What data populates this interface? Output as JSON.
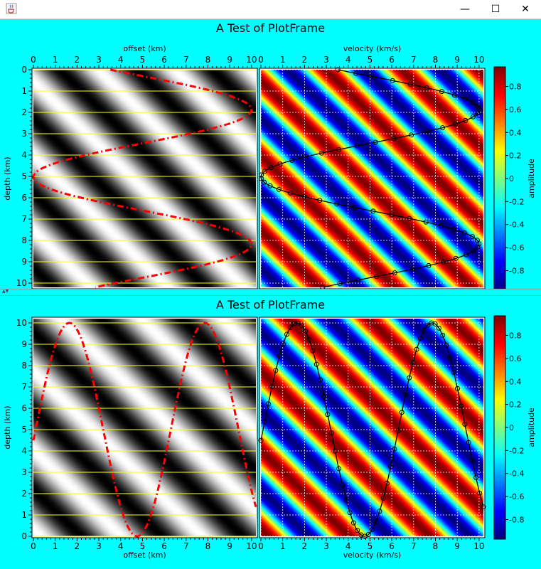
{
  "window": {
    "minimize_glyph": "—",
    "maximize_glyph": "☐",
    "close_glyph": "✕",
    "app_icon": "java-cup-icon"
  },
  "colors": {
    "background": "#00ffff",
    "title_bar": "#ffffff",
    "red_curve": "#ff0000",
    "black_curve": "#000000",
    "yellow_grid": "#ffff00"
  },
  "panels": [
    {
      "title": "A Test of PlotFrame",
      "axis_position": "top",
      "ylabel": "depth (km)",
      "y_direction": "down",
      "left_xlabel": "offset (km)",
      "right_xlabel": "velocity (km/s)",
      "colorbar_label": "amplitude",
      "y_ticks": [
        "0",
        "1",
        "2",
        "3",
        "4",
        "5",
        "6",
        "7",
        "8",
        "9",
        "10"
      ],
      "x_ticks": [
        "0",
        "1",
        "2",
        "3",
        "4",
        "5",
        "6",
        "7",
        "8",
        "9",
        "10"
      ],
      "colorbar_ticks": [
        "0.8",
        "0.6",
        "0.4",
        "0.2",
        "0",
        "-0.2",
        "-0.4",
        "-0.6",
        "-0.8"
      ]
    },
    {
      "title": "A Test of PlotFrame",
      "axis_position": "bottom",
      "ylabel": "depth (km)",
      "y_direction": "up",
      "left_xlabel": "offset (km)",
      "right_xlabel": "velocity (km/s)",
      "colorbar_label": "amplitude",
      "y_ticks": [
        "0",
        "1",
        "2",
        "3",
        "4",
        "5",
        "6",
        "7",
        "8",
        "9",
        "10"
      ],
      "x_ticks": [
        "0",
        "1",
        "2",
        "3",
        "4",
        "5",
        "6",
        "7",
        "8",
        "9",
        "10"
      ],
      "colorbar_ticks": [
        "0.8",
        "0.6",
        "0.4",
        "0.2",
        "0",
        "-0.2",
        "-0.4",
        "-0.6",
        "-0.8"
      ]
    }
  ],
  "chart_data": [
    {
      "type": "heatmap",
      "title": "A Test of PlotFrame",
      "xlabel": "offset (km)",
      "ylabel": "depth (km)",
      "colormap": "gray",
      "xlim": [
        0,
        10.2
      ],
      "ylim": [
        0,
        10.2
      ],
      "y_axis": "down",
      "field": "diagonal sine bands, period ~3.5 km",
      "y_gridlines": "yellow at each km",
      "series": [
        {
          "style": "dash-dot red",
          "shape": "x = 5 + 5*sin(2*pi*(y-0.3)/6.3)"
        }
      ]
    },
    {
      "type": "heatmap",
      "title": "A Test of PlotFrame",
      "xlabel": "velocity (km/s)",
      "ylabel": "depth (km)",
      "colormap": "jet",
      "xlim": [
        0,
        10.2
      ],
      "ylim": [
        0,
        10.2
      ],
      "y_axis": "down",
      "grid": true,
      "series": [
        {
          "style": "black line with circle markers",
          "shape": "x = 5 + 5*sin(2*pi*(y-0.3)/6.3)"
        }
      ]
    },
    {
      "type": "heatmap",
      "title": "A Test of PlotFrame",
      "xlabel": "offset (km)",
      "ylabel": "depth (km)",
      "colormap": "gray",
      "xlim": [
        0,
        10.2
      ],
      "ylim": [
        0,
        10.2
      ],
      "y_axis": "up",
      "field": "diagonal sine bands",
      "y_gridlines": "yellow at each km",
      "series": [
        {
          "style": "dash-dot red",
          "shape": "y = 5 + 5*sin(2*pi*(x-0.1)/6.2)"
        }
      ]
    },
    {
      "type": "heatmap",
      "title": "A Test of PlotFrame",
      "xlabel": "velocity (km/s)",
      "ylabel": "depth (km)",
      "colormap": "jet",
      "xlim": [
        0,
        10.2
      ],
      "ylim": [
        0,
        10.2
      ],
      "y_axis": "up",
      "grid": true,
      "series": [
        {
          "style": "black line with circle markers",
          "shape": "y = 5 + 5*sin(2*pi*(x-0.1)/6.2)"
        }
      ]
    },
    {
      "type": "colorbar",
      "label": "amplitude",
      "range": [
        -0.97,
        0.97
      ],
      "ticks": [
        0.8,
        0.6,
        0.4,
        0.2,
        0,
        -0.2,
        -0.4,
        -0.6,
        -0.8
      ]
    }
  ]
}
